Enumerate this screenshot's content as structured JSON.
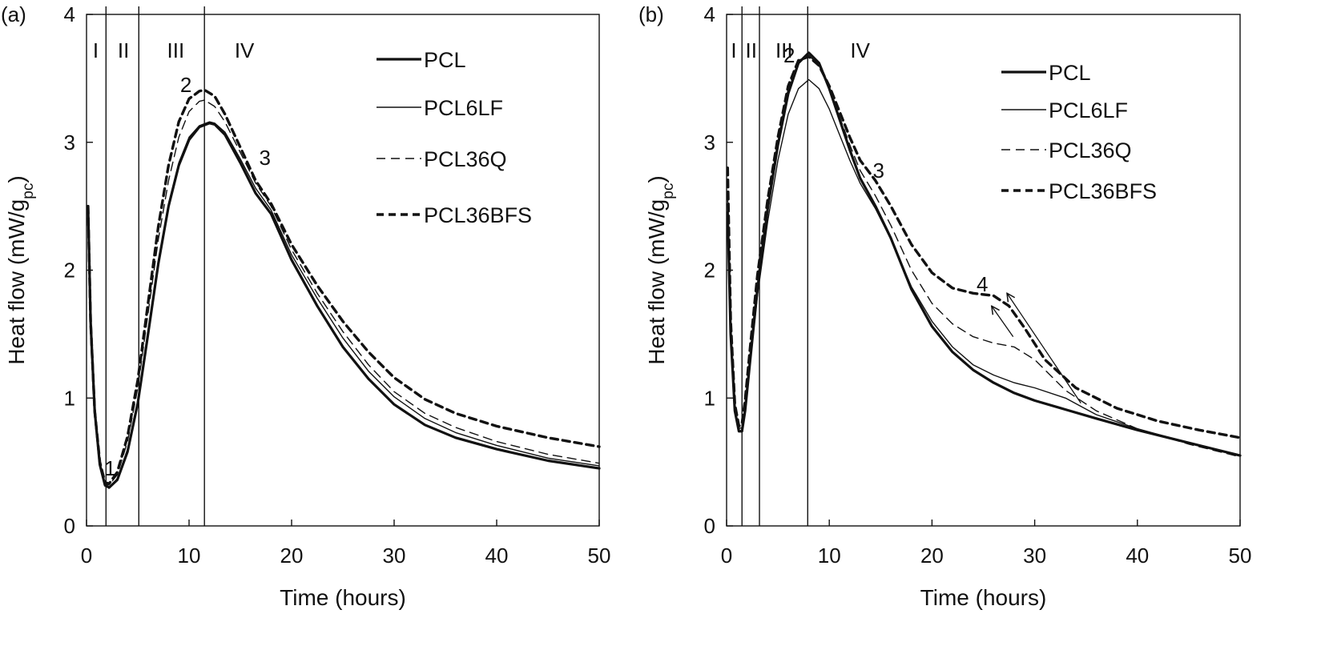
{
  "chart_data": [
    {
      "type": "line",
      "panel_label": "(a)",
      "xlabel": "Time (hours)",
      "ylabel_main": "Heat flow (mW/g",
      "ylabel_sub": "pc",
      "ylabel_close": ")",
      "xlim": [
        0,
        50
      ],
      "ylim": [
        0,
        4
      ],
      "x_ticks": [
        "0",
        "10",
        "20",
        "30",
        "40",
        "50"
      ],
      "y_ticks": [
        "0",
        "1",
        "2",
        "3",
        "4"
      ],
      "grid": false,
      "legend_position": "top-right",
      "region_boundaries": [
        1.9,
        5.1,
        11.5
      ],
      "regions": [
        {
          "label": "I",
          "x": 0.9
        },
        {
          "label": "II",
          "x": 3.6
        },
        {
          "label": "III",
          "x": 8.7
        },
        {
          "label": "IV",
          "x": 15.4
        }
      ],
      "annotations": [
        {
          "label": "1",
          "x": 2.3,
          "y": 0.45
        },
        {
          "label": "2",
          "x": 9.7,
          "y": 3.45
        },
        {
          "label": "3",
          "x": 17.4,
          "y": 2.88
        }
      ],
      "arrows": [],
      "series": [
        {
          "name": "PCL",
          "style": "thick-solid",
          "x": [
            0.15,
            0.4,
            0.8,
            1.3,
            1.8,
            2.2,
            3.0,
            4.0,
            5.0,
            6.0,
            7.0,
            8.0,
            9.0,
            10.0,
            11.0,
            12.0,
            12.5,
            13.5,
            15.0,
            16.5,
            18.0,
            20.0,
            22.5,
            25.0,
            27.5,
            30.0,
            33.0,
            36.0,
            40.0,
            45.0,
            50.0
          ],
          "y": [
            2.5,
            1.6,
            0.9,
            0.48,
            0.32,
            0.3,
            0.36,
            0.58,
            0.96,
            1.5,
            2.05,
            2.5,
            2.82,
            3.02,
            3.12,
            3.15,
            3.14,
            3.06,
            2.84,
            2.6,
            2.44,
            2.08,
            1.72,
            1.4,
            1.15,
            0.95,
            0.79,
            0.69,
            0.6,
            0.51,
            0.45
          ]
        },
        {
          "name": "PCL6LF",
          "style": "thin-solid",
          "x": [
            0.15,
            0.4,
            0.8,
            1.3,
            1.8,
            2.2,
            3.0,
            4.0,
            5.0,
            6.0,
            7.0,
            8.0,
            9.0,
            10.0,
            11.0,
            12.0,
            12.5,
            13.5,
            15.0,
            16.5,
            18.0,
            20.0,
            22.5,
            25.0,
            27.5,
            30.0,
            33.0,
            36.0,
            40.0,
            45.0,
            50.0
          ],
          "y": [
            2.5,
            1.6,
            0.9,
            0.48,
            0.31,
            0.3,
            0.37,
            0.6,
            0.98,
            1.52,
            2.07,
            2.52,
            2.84,
            3.04,
            3.13,
            3.16,
            3.15,
            3.08,
            2.87,
            2.64,
            2.47,
            2.12,
            1.78,
            1.47,
            1.21,
            1.01,
            0.84,
            0.73,
            0.63,
            0.53,
            0.47
          ]
        },
        {
          "name": "PCL36Q",
          "style": "thin-dashed",
          "x": [
            0.15,
            0.4,
            0.8,
            1.3,
            1.8,
            2.2,
            3.0,
            4.0,
            5.0,
            6.0,
            7.0,
            8.0,
            9.0,
            10.0,
            11.0,
            11.5,
            12.5,
            13.5,
            15.0,
            16.5,
            18.0,
            20.0,
            22.5,
            25.0,
            27.5,
            30.0,
            33.0,
            36.0,
            40.0,
            45.0,
            50.0
          ],
          "y": [
            2.5,
            1.6,
            0.9,
            0.5,
            0.33,
            0.32,
            0.4,
            0.66,
            1.08,
            1.66,
            2.24,
            2.7,
            3.04,
            3.24,
            3.32,
            3.33,
            3.28,
            3.16,
            2.92,
            2.68,
            2.5,
            2.16,
            1.82,
            1.52,
            1.26,
            1.05,
            0.88,
            0.77,
            0.66,
            0.56,
            0.49
          ]
        },
        {
          "name": "PCL36BFS",
          "style": "thick-dashed",
          "x": [
            0.15,
            0.4,
            0.8,
            1.3,
            1.8,
            2.2,
            3.0,
            4.0,
            5.0,
            6.0,
            7.0,
            8.0,
            9.0,
            10.0,
            11.0,
            11.5,
            12.5,
            13.5,
            15.0,
            16.5,
            18.0,
            20.0,
            22.5,
            25.0,
            27.5,
            30.0,
            33.0,
            36.0,
            40.0,
            45.0,
            50.0
          ],
          "y": [
            2.5,
            1.6,
            0.9,
            0.5,
            0.34,
            0.33,
            0.42,
            0.7,
            1.14,
            1.74,
            2.34,
            2.82,
            3.16,
            3.34,
            3.4,
            3.41,
            3.36,
            3.22,
            2.96,
            2.7,
            2.52,
            2.2,
            1.88,
            1.6,
            1.36,
            1.16,
            0.99,
            0.88,
            0.78,
            0.69,
            0.62
          ]
        }
      ]
    },
    {
      "type": "line",
      "panel_label": "(b)",
      "xlabel": "Time (hours)",
      "ylabel_main": "Heat flow (mW/g",
      "ylabel_sub": "pc",
      "ylabel_close": ")",
      "xlim": [
        0,
        50
      ],
      "ylim": [
        0,
        4
      ],
      "x_ticks": [
        "0",
        "10",
        "20",
        "30",
        "40",
        "50"
      ],
      "y_ticks": [
        "0",
        "1",
        "2",
        "3",
        "4"
      ],
      "grid": false,
      "legend_position": "top-right",
      "region_boundaries": [
        1.5,
        3.2,
        7.9
      ],
      "regions": [
        {
          "label": "I",
          "x": 0.7
        },
        {
          "label": "II",
          "x": 2.4
        },
        {
          "label": "III",
          "x": 5.6
        },
        {
          "label": "IV",
          "x": 13.0
        }
      ],
      "annotations": [
        {
          "label": "2",
          "x": 6.1,
          "y": 3.68
        },
        {
          "label": "3",
          "x": 14.8,
          "y": 2.78
        },
        {
          "label": "4",
          "x": 24.9,
          "y": 1.89
        }
      ],
      "arrows": [
        {
          "from": [
            34.5,
            0.96
          ],
          "to": [
            27.3,
            1.82
          ]
        },
        {
          "from": [
            27.9,
            1.48
          ],
          "to": [
            25.8,
            1.72
          ]
        }
      ],
      "series": [
        {
          "name": "PCL",
          "style": "thick-solid",
          "x": [
            0.1,
            0.4,
            0.8,
            1.2,
            1.5,
            1.8,
            2.3,
            3.0,
            4.0,
            5.0,
            6.0,
            7.0,
            8.0,
            9.0,
            10.0,
            11.0,
            12.0,
            13.0,
            14.5,
            16.0,
            18.0,
            20.0,
            22.0,
            24.0,
            26.0,
            28.0,
            30.0,
            33.0,
            36.0,
            40.0,
            45.0,
            50.0
          ],
          "y": [
            2.45,
            1.5,
            0.9,
            0.74,
            0.74,
            0.9,
            1.3,
            1.85,
            2.48,
            2.98,
            3.38,
            3.62,
            3.7,
            3.62,
            3.42,
            3.18,
            2.94,
            2.72,
            2.5,
            2.25,
            1.85,
            1.56,
            1.36,
            1.22,
            1.12,
            1.04,
            0.98,
            0.91,
            0.84,
            0.75,
            0.65,
            0.55
          ]
        },
        {
          "name": "PCL6LF",
          "style": "thin-solid",
          "x": [
            0.1,
            0.4,
            0.8,
            1.2,
            1.5,
            1.8,
            2.3,
            3.0,
            4.0,
            5.0,
            6.0,
            7.0,
            8.0,
            9.0,
            10.0,
            11.0,
            12.0,
            13.0,
            14.5,
            16.0,
            18.0,
            20.0,
            22.0,
            24.0,
            26.0,
            28.0,
            30.0,
            33.0,
            36.0,
            40.0,
            45.0,
            50.0
          ],
          "y": [
            2.45,
            1.5,
            0.9,
            0.74,
            0.75,
            0.9,
            1.28,
            1.8,
            2.38,
            2.86,
            3.22,
            3.42,
            3.49,
            3.42,
            3.26,
            3.06,
            2.86,
            2.68,
            2.48,
            2.24,
            1.87,
            1.6,
            1.4,
            1.26,
            1.18,
            1.12,
            1.08,
            1.0,
            0.87,
            0.76,
            0.65,
            0.55
          ]
        },
        {
          "name": "PCL36Q",
          "style": "thin-dashed",
          "x": [
            0.1,
            0.4,
            0.8,
            1.2,
            1.5,
            1.8,
            2.3,
            3.0,
            4.0,
            5.0,
            6.0,
            7.0,
            8.0,
            9.0,
            10.0,
            11.0,
            12.0,
            13.0,
            14.5,
            16.0,
            18.0,
            20.0,
            22.0,
            24.0,
            26.0,
            28.0,
            30.0,
            33.0,
            36.0,
            40.0,
            45.0,
            50.0
          ],
          "y": [
            2.6,
            1.55,
            0.92,
            0.76,
            0.77,
            0.95,
            1.36,
            1.92,
            2.52,
            3.02,
            3.42,
            3.64,
            3.68,
            3.6,
            3.42,
            3.2,
            2.98,
            2.78,
            2.58,
            2.35,
            2.0,
            1.74,
            1.58,
            1.48,
            1.43,
            1.4,
            1.3,
            1.06,
            0.9,
            0.76,
            0.64,
            0.54
          ]
        },
        {
          "name": "PCL36BFS",
          "style": "thick-dashed",
          "x": [
            0.1,
            0.4,
            0.8,
            1.2,
            1.5,
            1.8,
            2.3,
            3.0,
            4.0,
            5.0,
            6.0,
            7.0,
            8.0,
            9.0,
            10.0,
            11.0,
            12.0,
            13.0,
            14.5,
            16.0,
            18.0,
            20.0,
            22.0,
            24.0,
            26.0,
            27.5,
            29.0,
            31.0,
            34.0,
            38.0,
            42.0,
            46.0,
            50.0
          ],
          "y": [
            2.8,
            1.6,
            0.95,
            0.78,
            0.8,
            0.98,
            1.4,
            1.96,
            2.55,
            3.04,
            3.44,
            3.64,
            3.67,
            3.6,
            3.44,
            3.24,
            3.04,
            2.86,
            2.7,
            2.5,
            2.2,
            1.98,
            1.86,
            1.82,
            1.8,
            1.72,
            1.55,
            1.3,
            1.08,
            0.92,
            0.82,
            0.75,
            0.69
          ]
        }
      ]
    }
  ]
}
